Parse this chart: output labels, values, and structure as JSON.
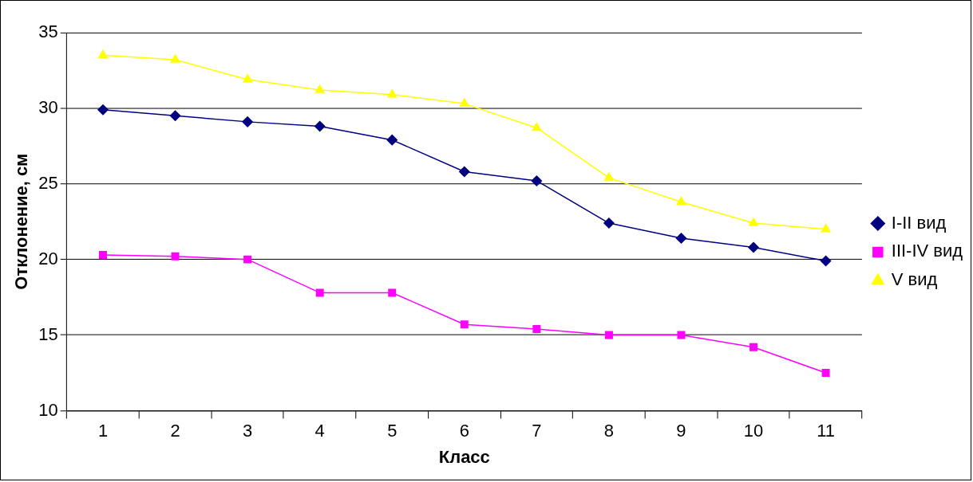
{
  "chart_data": {
    "type": "line",
    "xlabel": "Класс",
    "ylabel": "Отклонение, см",
    "categories": [
      "1",
      "2",
      "3",
      "4",
      "5",
      "6",
      "7",
      "8",
      "9",
      "10",
      "11"
    ],
    "ylim": [
      10,
      35
    ],
    "yticks": [
      10,
      15,
      20,
      25,
      30,
      35
    ],
    "grid": "y",
    "legend": "right",
    "series": [
      {
        "name": "I-II вид",
        "color": "#000080",
        "marker": "diamond",
        "values": [
          29.9,
          29.5,
          29.1,
          28.8,
          27.9,
          25.8,
          25.2,
          22.4,
          21.4,
          20.8,
          19.9
        ]
      },
      {
        "name": "III-IV вид",
        "color": "#ff00ff",
        "marker": "square",
        "values": [
          20.3,
          20.2,
          20.0,
          17.8,
          17.8,
          15.7,
          15.4,
          15.0,
          15.0,
          14.2,
          12.5
        ]
      },
      {
        "name": "V вид",
        "color": "#ffff00",
        "marker": "triangle",
        "values": [
          33.5,
          33.2,
          31.9,
          31.2,
          30.9,
          30.3,
          28.7,
          25.4,
          23.8,
          22.4,
          22.0
        ]
      }
    ]
  }
}
